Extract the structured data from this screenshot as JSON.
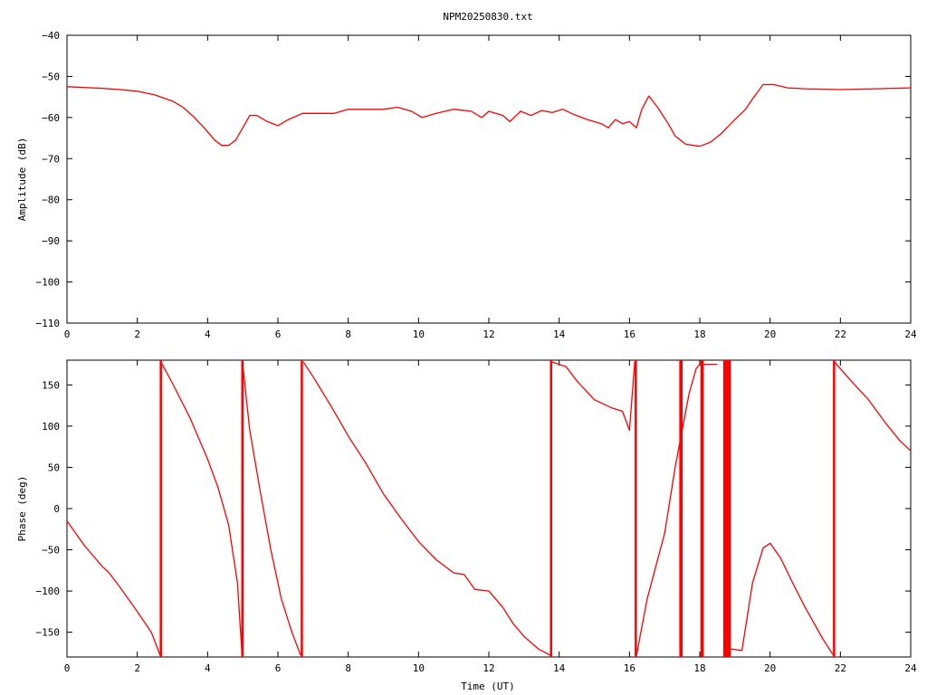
{
  "chart_data": [
    {
      "type": "line",
      "title": "NPM20250830.txt",
      "xlabel": "",
      "ylabel": "Amplitude (dB)",
      "xlim": [
        0,
        24
      ],
      "ylim": [
        -110,
        -40
      ],
      "x_ticks": [
        "0",
        "2",
        "4",
        "6",
        "8",
        "10",
        "12",
        "14",
        "16",
        "18",
        "20",
        "22",
        "24"
      ],
      "y_ticks": [
        "−110",
        "−100",
        "−90",
        "−80",
        "−70",
        "−60",
        "−50",
        "−40"
      ],
      "grid": false,
      "series": [
        {
          "color": "#ff0000",
          "points": [
            [
              0,
              -52.5
            ],
            [
              0.5,
              -52.7
            ],
            [
              1,
              -52.9
            ],
            [
              1.5,
              -53.2
            ],
            [
              2,
              -53.6
            ],
            [
              2.5,
              -54.5
            ],
            [
              3,
              -56
            ],
            [
              3.3,
              -57.5
            ],
            [
              3.6,
              -59.8
            ],
            [
              3.9,
              -62.5
            ],
            [
              4.2,
              -65.5
            ],
            [
              4.4,
              -66.8
            ],
            [
              4.6,
              -66.8
            ],
            [
              4.8,
              -65.5
            ],
            [
              5,
              -62.5
            ],
            [
              5.2,
              -59.5
            ],
            [
              5.4,
              -59.5
            ],
            [
              5.7,
              -61
            ],
            [
              6,
              -62
            ],
            [
              6.3,
              -60.5
            ],
            [
              6.7,
              -59
            ],
            [
              7.2,
              -59
            ],
            [
              7.6,
              -59
            ],
            [
              8,
              -58
            ],
            [
              8.5,
              -58
            ],
            [
              9,
              -58
            ],
            [
              9.4,
              -57.5
            ],
            [
              9.8,
              -58.5
            ],
            [
              10.1,
              -60
            ],
            [
              10.5,
              -59
            ],
            [
              11,
              -58
            ],
            [
              11.5,
              -58.5
            ],
            [
              11.8,
              -60
            ],
            [
              12,
              -58.5
            ],
            [
              12.4,
              -59.5
            ],
            [
              12.6,
              -61
            ],
            [
              12.9,
              -58.5
            ],
            [
              13.2,
              -59.5
            ],
            [
              13.5,
              -58.3
            ],
            [
              13.8,
              -58.8
            ],
            [
              14.1,
              -58
            ],
            [
              14.4,
              -59.2
            ],
            [
              14.8,
              -60.5
            ],
            [
              15.2,
              -61.5
            ],
            [
              15.4,
              -62.5
            ],
            [
              15.6,
              -60.5
            ],
            [
              15.8,
              -61.5
            ],
            [
              16,
              -61
            ],
            [
              16.2,
              -62.5
            ],
            [
              16.35,
              -58
            ],
            [
              16.55,
              -54.8
            ],
            [
              16.8,
              -57.5
            ],
            [
              17.1,
              -61.5
            ],
            [
              17.3,
              -64.5
            ],
            [
              17.6,
              -66.5
            ],
            [
              18,
              -67
            ],
            [
              18.3,
              -66
            ],
            [
              18.6,
              -64
            ],
            [
              19,
              -60.5
            ],
            [
              19.3,
              -58
            ],
            [
              19.5,
              -55.5
            ],
            [
              19.8,
              -52
            ],
            [
              20.1,
              -52
            ],
            [
              20.5,
              -52.8
            ],
            [
              21,
              -53
            ],
            [
              22,
              -53.2
            ],
            [
              23,
              -53
            ],
            [
              24,
              -52.8
            ]
          ]
        }
      ]
    },
    {
      "type": "line",
      "title": "",
      "xlabel": "Time (UT)",
      "ylabel": "Phase (deg)",
      "xlim": [
        0,
        24
      ],
      "ylim": [
        -180,
        180
      ],
      "x_ticks": [
        "0",
        "2",
        "4",
        "6",
        "8",
        "10",
        "12",
        "14",
        "16",
        "18",
        "20",
        "22",
        "24"
      ],
      "y_ticks": [
        "−150",
        "−100",
        "−50",
        "0",
        "50",
        "100",
        "150"
      ],
      "grid": false,
      "series": [
        {
          "color": "#ff0000",
          "points": [
            [
              0,
              -15
            ],
            [
              0.5,
              -45
            ],
            [
              1,
              -70
            ],
            [
              1.2,
              -78
            ],
            [
              1.5,
              -95
            ],
            [
              2,
              -125
            ],
            [
              2.4,
              -150
            ],
            [
              2.65,
              -178
            ],
            [
              2.67,
              178
            ],
            [
              3,
              152
            ],
            [
              3.5,
              110
            ],
            [
              4,
              60
            ],
            [
              4.3,
              25
            ],
            [
              4.6,
              -20
            ],
            [
              4.85,
              -90
            ],
            [
              4.98,
              -178
            ],
            [
              4.99,
              178
            ],
            [
              5.2,
              95
            ],
            [
              5.5,
              20
            ],
            [
              5.8,
              -50
            ],
            [
              6.1,
              -110
            ],
            [
              6.4,
              -150
            ],
            [
              6.65,
              -178
            ],
            [
              6.72,
              178
            ],
            [
              7,
              160
            ],
            [
              7.5,
              125
            ],
            [
              8,
              88
            ],
            [
              8.5,
              55
            ],
            [
              9,
              18
            ],
            [
              9.5,
              -12
            ],
            [
              10,
              -40
            ],
            [
              10.5,
              -62
            ],
            [
              11,
              -78
            ],
            [
              11.3,
              -80
            ],
            [
              11.6,
              -98
            ],
            [
              12,
              -100
            ],
            [
              12.4,
              -120
            ],
            [
              12.7,
              -140
            ],
            [
              13,
              -155
            ],
            [
              13.4,
              -170
            ],
            [
              13.75,
              -178
            ],
            [
              13.78,
              178
            ],
            [
              14.2,
              172
            ],
            [
              14.5,
              155
            ],
            [
              15,
              132
            ],
            [
              15.5,
              122
            ],
            [
              15.8,
              118
            ],
            [
              16,
              95
            ],
            [
              16.15,
              178
            ],
            [
              16.2,
              -178
            ],
            [
              16.5,
              -110
            ],
            [
              17,
              -30
            ],
            [
              17.3,
              50
            ],
            [
              17.7,
              140
            ],
            [
              17.9,
              170
            ],
            [
              18,
              175
            ],
            [
              18.5,
              175
            ],
            [
              18.8,
              -170
            ],
            [
              19.2,
              -172
            ],
            [
              19.5,
              -90
            ],
            [
              19.8,
              -48
            ],
            [
              20,
              -42
            ],
            [
              20.3,
              -60
            ],
            [
              20.7,
              -95
            ],
            [
              21,
              -120
            ],
            [
              21.5,
              -158
            ],
            [
              21.8,
              -178
            ],
            [
              21.83,
              178
            ],
            [
              22.3,
              155
            ],
            [
              22.8,
              132
            ],
            [
              23.3,
              103
            ],
            [
              23.7,
              82
            ],
            [
              24,
              70
            ]
          ],
          "wrap_lines_x": [
            2.67,
            4.99,
            6.68,
            13.77,
            16.18,
            17.45,
            17.48,
            18.05,
            18.08,
            18.7,
            18.75,
            18.8,
            18.85,
            21.82
          ]
        }
      ]
    }
  ]
}
